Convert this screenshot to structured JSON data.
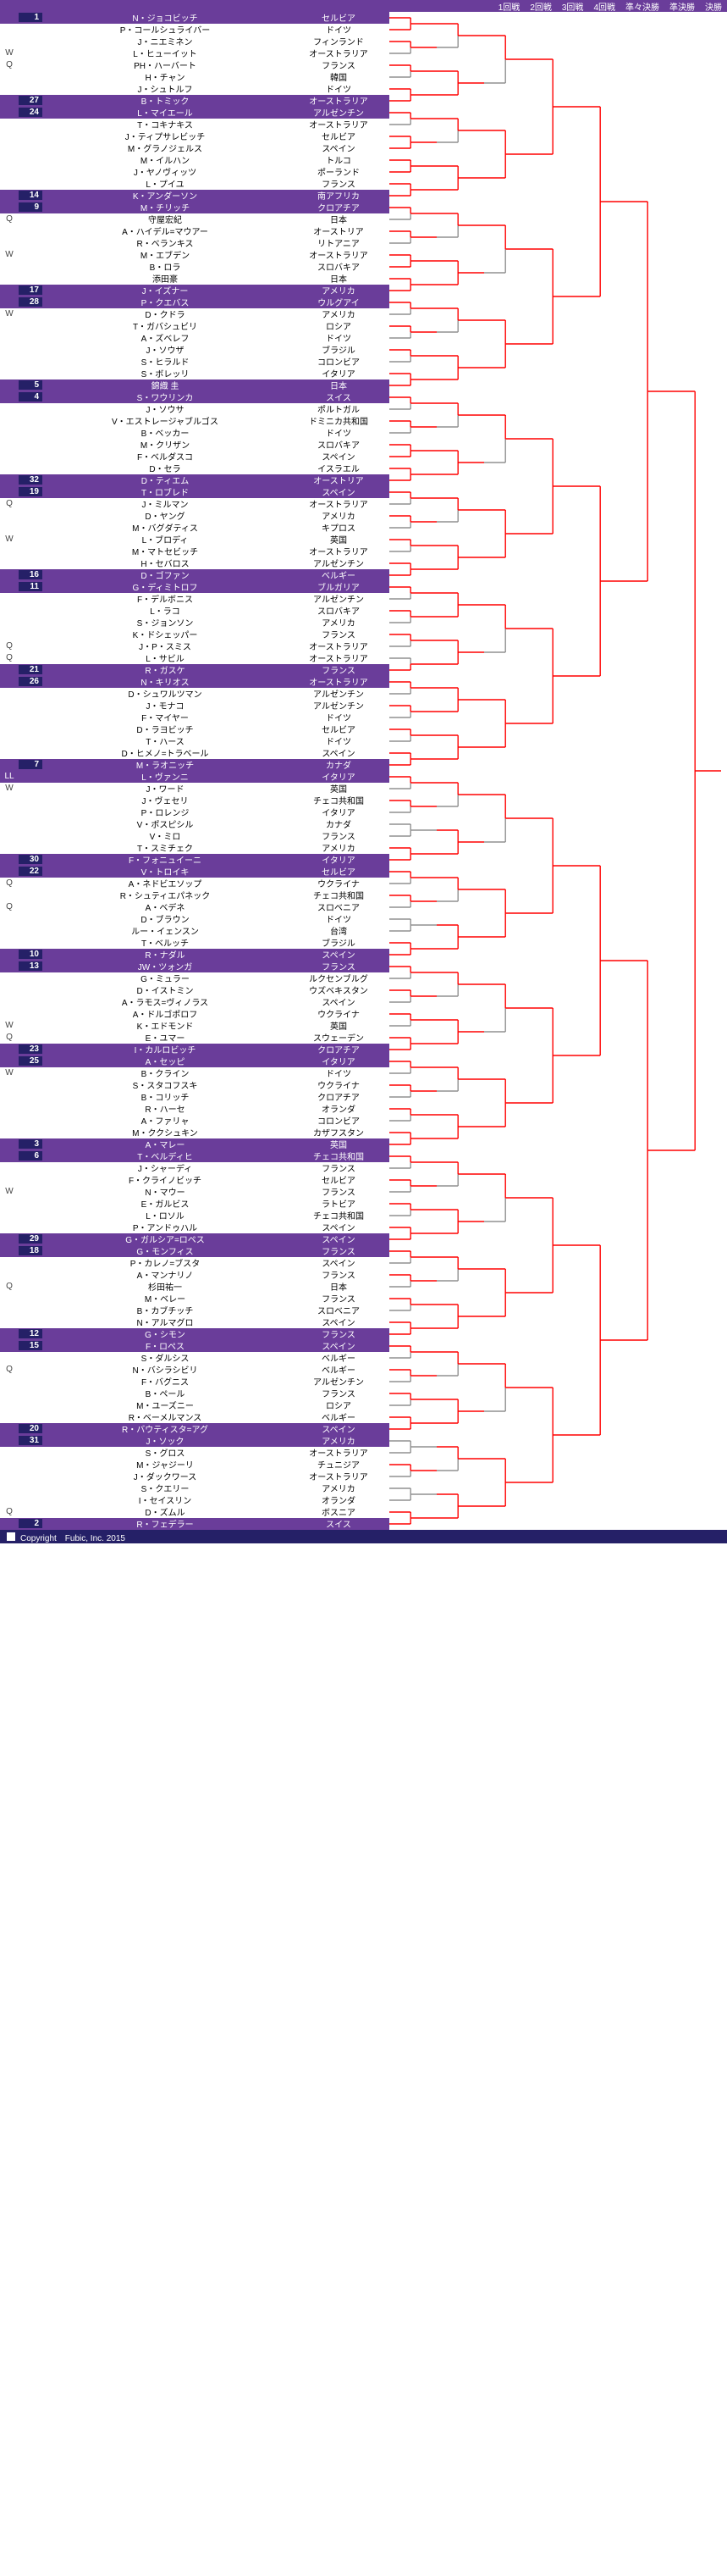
{
  "header_rounds": [
    "1回戦",
    "2回戦",
    "3回戦",
    "4回戦",
    "準々決勝",
    "準決勝",
    "決勝"
  ],
  "footer": "Copyright　Fubic, Inc. 2015",
  "colors": {
    "seed_bg": "#6a3d9a",
    "seedbox_bg": "#252067",
    "line": "#909090",
    "winline": "#ff0000"
  },
  "players": [
    {
      "q": "",
      "seed": "1",
      "name": "N・ジョコビッチ",
      "ctry": "セルビア",
      "s": true
    },
    {
      "q": "",
      "seed": "",
      "name": "P・コールシュライバー",
      "ctry": "ドイツ",
      "s": false
    },
    {
      "q": "",
      "seed": "",
      "name": "J・ニエミネン",
      "ctry": "フィンランド",
      "s": false
    },
    {
      "q": "W",
      "seed": "",
      "name": "L・ヒューイット",
      "ctry": "オーストラリア",
      "s": false
    },
    {
      "q": "Q",
      "seed": "",
      "name": "PH・ハーバート",
      "ctry": "フランス",
      "s": false
    },
    {
      "q": "",
      "seed": "",
      "name": "H・チャン",
      "ctry": "韓国",
      "s": false
    },
    {
      "q": "",
      "seed": "",
      "name": "J・シュトルフ",
      "ctry": "ドイツ",
      "s": false
    },
    {
      "q": "",
      "seed": "27",
      "name": "B・トミック",
      "ctry": "オーストラリア",
      "s": true
    },
    {
      "q": "",
      "seed": "24",
      "name": "L・マイエール",
      "ctry": "アルゼンチン",
      "s": true
    },
    {
      "q": "",
      "seed": "",
      "name": "T・コキナキス",
      "ctry": "オーストラリア",
      "s": false
    },
    {
      "q": "",
      "seed": "",
      "name": "J・ティプサレビッチ",
      "ctry": "セルビア",
      "s": false
    },
    {
      "q": "",
      "seed": "",
      "name": "M・グラノジェルス",
      "ctry": "スペイン",
      "s": false
    },
    {
      "q": "",
      "seed": "",
      "name": "M・イルハン",
      "ctry": "トルコ",
      "s": false
    },
    {
      "q": "",
      "seed": "",
      "name": "J・ヤノヴィッツ",
      "ctry": "ポーランド",
      "s": false
    },
    {
      "q": "",
      "seed": "",
      "name": "L・プイユ",
      "ctry": "フランス",
      "s": false
    },
    {
      "q": "",
      "seed": "14",
      "name": "K・アンダーソン",
      "ctry": "南アフリカ",
      "s": true
    },
    {
      "q": "",
      "seed": "9",
      "name": "M・チリッチ",
      "ctry": "クロアチア",
      "s": true
    },
    {
      "q": "Q",
      "seed": "",
      "name": "守屋宏紀",
      "ctry": "日本",
      "s": false
    },
    {
      "q": "",
      "seed": "",
      "name": "A・ハイデル=マウアー",
      "ctry": "オーストリア",
      "s": false
    },
    {
      "q": "",
      "seed": "",
      "name": "R・ベランキス",
      "ctry": "リトアニア",
      "s": false
    },
    {
      "q": "W",
      "seed": "",
      "name": "M・エブデン",
      "ctry": "オーストラリア",
      "s": false
    },
    {
      "q": "",
      "seed": "",
      "name": "B・ロラ",
      "ctry": "スロバキア",
      "s": false
    },
    {
      "q": "",
      "seed": "",
      "name": "添田豪",
      "ctry": "日本",
      "s": false
    },
    {
      "q": "",
      "seed": "17",
      "name": "J・イズナー",
      "ctry": "アメリカ",
      "s": true
    },
    {
      "q": "",
      "seed": "28",
      "name": "P・クエバス",
      "ctry": "ウルグアイ",
      "s": true
    },
    {
      "q": "W",
      "seed": "",
      "name": "D・クドラ",
      "ctry": "アメリカ",
      "s": false
    },
    {
      "q": "",
      "seed": "",
      "name": "T・ガバシュビリ",
      "ctry": "ロシア",
      "s": false
    },
    {
      "q": "",
      "seed": "",
      "name": "A・ズベレフ",
      "ctry": "ドイツ",
      "s": false
    },
    {
      "q": "",
      "seed": "",
      "name": "J・ソウザ",
      "ctry": "ブラジル",
      "s": false
    },
    {
      "q": "",
      "seed": "",
      "name": "S・ヒラルド",
      "ctry": "コロンビア",
      "s": false
    },
    {
      "q": "",
      "seed": "",
      "name": "S・ボレッリ",
      "ctry": "イタリア",
      "s": false
    },
    {
      "q": "",
      "seed": "5",
      "name": "錦織 圭",
      "ctry": "日本",
      "s": true
    },
    {
      "q": "",
      "seed": "4",
      "name": "S・ワウリンカ",
      "ctry": "スイス",
      "s": true
    },
    {
      "q": "",
      "seed": "",
      "name": "J・ソウサ",
      "ctry": "ポルトガル",
      "s": false
    },
    {
      "q": "",
      "seed": "",
      "name": "V・エストレージャブルゴス",
      "ctry": "ドミニカ共和国",
      "s": false
    },
    {
      "q": "",
      "seed": "",
      "name": "B・ベッカー",
      "ctry": "ドイツ",
      "s": false
    },
    {
      "q": "",
      "seed": "",
      "name": "M・クリザン",
      "ctry": "スロバキア",
      "s": false
    },
    {
      "q": "",
      "seed": "",
      "name": "F・ベルダスコ",
      "ctry": "スペイン",
      "s": false
    },
    {
      "q": "",
      "seed": "",
      "name": "D・セラ",
      "ctry": "イスラエル",
      "s": false
    },
    {
      "q": "",
      "seed": "32",
      "name": "D・ティエム",
      "ctry": "オーストリア",
      "s": true
    },
    {
      "q": "",
      "seed": "19",
      "name": "T・ロブレド",
      "ctry": "スペイン",
      "s": true
    },
    {
      "q": "Q",
      "seed": "",
      "name": "J・ミルマン",
      "ctry": "オーストラリア",
      "s": false
    },
    {
      "q": "",
      "seed": "",
      "name": "D・ヤング",
      "ctry": "アメリカ",
      "s": false
    },
    {
      "q": "",
      "seed": "",
      "name": "M・バグダティス",
      "ctry": "キプロス",
      "s": false
    },
    {
      "q": "W",
      "seed": "",
      "name": "L・ブロディ",
      "ctry": "英国",
      "s": false
    },
    {
      "q": "",
      "seed": "",
      "name": "M・マトセビッチ",
      "ctry": "オーストラリア",
      "s": false
    },
    {
      "q": "",
      "seed": "",
      "name": "H・セバロス",
      "ctry": "アルゼンチン",
      "s": false
    },
    {
      "q": "",
      "seed": "16",
      "name": "D・ゴファン",
      "ctry": "ベルギー",
      "s": true
    },
    {
      "q": "",
      "seed": "11",
      "name": "G・ディミトロフ",
      "ctry": "ブルガリア",
      "s": true
    },
    {
      "q": "",
      "seed": "",
      "name": "F・デルボニス",
      "ctry": "アルゼンチン",
      "s": false
    },
    {
      "q": "",
      "seed": "",
      "name": "L・ラコ",
      "ctry": "スロバキア",
      "s": false
    },
    {
      "q": "",
      "seed": "",
      "name": "S・ジョンソン",
      "ctry": "アメリカ",
      "s": false
    },
    {
      "q": "",
      "seed": "",
      "name": "K・ドシェッパー",
      "ctry": "フランス",
      "s": false
    },
    {
      "q": "Q",
      "seed": "",
      "name": "J・P・スミス",
      "ctry": "オーストラリア",
      "s": false
    },
    {
      "q": "Q",
      "seed": "",
      "name": "L・サビル",
      "ctry": "オーストラリア",
      "s": false
    },
    {
      "q": "",
      "seed": "21",
      "name": "R・ガスケ",
      "ctry": "フランス",
      "s": true
    },
    {
      "q": "",
      "seed": "26",
      "name": "N・キリオス",
      "ctry": "オーストラリア",
      "s": true
    },
    {
      "q": "",
      "seed": "",
      "name": "D・シュワルツマン",
      "ctry": "アルゼンチン",
      "s": false
    },
    {
      "q": "",
      "seed": "",
      "name": "J・モナコ",
      "ctry": "アルゼンチン",
      "s": false
    },
    {
      "q": "",
      "seed": "",
      "name": "F・マイヤー",
      "ctry": "ドイツ",
      "s": false
    },
    {
      "q": "",
      "seed": "",
      "name": "D・ラヨビッチ",
      "ctry": "セルビア",
      "s": false
    },
    {
      "q": "",
      "seed": "",
      "name": "T・ハース",
      "ctry": "ドイツ",
      "s": false
    },
    {
      "q": "",
      "seed": "",
      "name": "D・ヒメノ=トラベール",
      "ctry": "スペイン",
      "s": false
    },
    {
      "q": "",
      "seed": "7",
      "name": "M・ラオニッチ",
      "ctry": "カナダ",
      "s": true
    },
    {
      "q": "LL",
      "seed": "",
      "name": "L・ヴァンニ",
      "ctry": "イタリア",
      "s": true
    },
    {
      "q": "W",
      "seed": "",
      "name": "J・ワード",
      "ctry": "英国",
      "s": false
    },
    {
      "q": "",
      "seed": "",
      "name": "J・ヴェセリ",
      "ctry": "チェコ共和国",
      "s": false
    },
    {
      "q": "",
      "seed": "",
      "name": "P・ロレンジ",
      "ctry": "イタリア",
      "s": false
    },
    {
      "q": "",
      "seed": "",
      "name": "V・ポスピシル",
      "ctry": "カナダ",
      "s": false
    },
    {
      "q": "",
      "seed": "",
      "name": "V・ミロ",
      "ctry": "フランス",
      "s": false
    },
    {
      "q": "",
      "seed": "",
      "name": "T・スミチェク",
      "ctry": "アメリカ",
      "s": false
    },
    {
      "q": "",
      "seed": "30",
      "name": "F・フォニュイーニ",
      "ctry": "イタリア",
      "s": true
    },
    {
      "q": "",
      "seed": "22",
      "name": "V・トロイキ",
      "ctry": "セルビア",
      "s": true
    },
    {
      "q": "Q",
      "seed": "",
      "name": "A・ネドビエソップ",
      "ctry": "ウクライナ",
      "s": false
    },
    {
      "q": "",
      "seed": "",
      "name": "R・シュティエパネック",
      "ctry": "チェコ共和国",
      "s": false
    },
    {
      "q": "Q",
      "seed": "",
      "name": "A・ベデネ",
      "ctry": "スロベニア",
      "s": false
    },
    {
      "q": "",
      "seed": "",
      "name": "D・ブラウン",
      "ctry": "ドイツ",
      "s": false
    },
    {
      "q": "",
      "seed": "",
      "name": "ルー・イェンスン",
      "ctry": "台湾",
      "s": false
    },
    {
      "q": "",
      "seed": "",
      "name": "T・ベルッチ",
      "ctry": "ブラジル",
      "s": false
    },
    {
      "q": "",
      "seed": "10",
      "name": "R・ナダル",
      "ctry": "スペイン",
      "s": true
    },
    {
      "q": "",
      "seed": "13",
      "name": "JW・ツォンガ",
      "ctry": "フランス",
      "s": true
    },
    {
      "q": "",
      "seed": "",
      "name": "G・ミュラー",
      "ctry": "ルクセンブルグ",
      "s": false
    },
    {
      "q": "",
      "seed": "",
      "name": "D・イストミン",
      "ctry": "ウズベキスタン",
      "s": false
    },
    {
      "q": "",
      "seed": "",
      "name": "A・ラモス=ヴィノラス",
      "ctry": "スペイン",
      "s": false
    },
    {
      "q": "",
      "seed": "",
      "name": "A・ドルゴポロフ",
      "ctry": "ウクライナ",
      "s": false
    },
    {
      "q": "W",
      "seed": "",
      "name": "K・エドモンド",
      "ctry": "英国",
      "s": false
    },
    {
      "q": "Q",
      "seed": "",
      "name": "E・ユマー",
      "ctry": "スウェーデン",
      "s": false
    },
    {
      "q": "",
      "seed": "23",
      "name": "I・カルロビッチ",
      "ctry": "クロアチア",
      "s": true
    },
    {
      "q": "",
      "seed": "25",
      "name": "A・セッピ",
      "ctry": "イタリア",
      "s": true
    },
    {
      "q": "W",
      "seed": "",
      "name": "B・クライン",
      "ctry": "ドイツ",
      "s": false
    },
    {
      "q": "",
      "seed": "",
      "name": "S・スタコフスキ",
      "ctry": "ウクライナ",
      "s": false
    },
    {
      "q": "",
      "seed": "",
      "name": "B・コリッチ",
      "ctry": "クロアチア",
      "s": false
    },
    {
      "q": "",
      "seed": "",
      "name": "R・ハーセ",
      "ctry": "オランダ",
      "s": false
    },
    {
      "q": "",
      "seed": "",
      "name": "A・ファリャ",
      "ctry": "コロンビア",
      "s": false
    },
    {
      "q": "",
      "seed": "",
      "name": "M・ククシュキン",
      "ctry": "カザフスタン",
      "s": false
    },
    {
      "q": "",
      "seed": "3",
      "name": "A・マレー",
      "ctry": "英国",
      "s": true
    },
    {
      "q": "",
      "seed": "6",
      "name": "T・ベルディヒ",
      "ctry": "チェコ共和国",
      "s": true
    },
    {
      "q": "",
      "seed": "",
      "name": "J・シャーディ",
      "ctry": "フランス",
      "s": false
    },
    {
      "q": "",
      "seed": "",
      "name": "F・クライノビッチ",
      "ctry": "セルビア",
      "s": false
    },
    {
      "q": "W",
      "seed": "",
      "name": "N・マウー",
      "ctry": "フランス",
      "s": false
    },
    {
      "q": "",
      "seed": "",
      "name": "E・ガルビス",
      "ctry": "ラトビア",
      "s": false
    },
    {
      "q": "",
      "seed": "",
      "name": "L・ロソル",
      "ctry": "チェコ共和国",
      "s": false
    },
    {
      "q": "",
      "seed": "",
      "name": "P・アンドゥハル",
      "ctry": "スペイン",
      "s": false
    },
    {
      "q": "",
      "seed": "29",
      "name": "G・ガルシア=ロペス",
      "ctry": "スペイン",
      "s": true
    },
    {
      "q": "",
      "seed": "18",
      "name": "G・モンフィス",
      "ctry": "フランス",
      "s": true
    },
    {
      "q": "",
      "seed": "",
      "name": "P・カレノ=ブスタ",
      "ctry": "スペイン",
      "s": false
    },
    {
      "q": "",
      "seed": "",
      "name": "A・マンナリノ",
      "ctry": "フランス",
      "s": false
    },
    {
      "q": "Q",
      "seed": "",
      "name": "杉田祐一",
      "ctry": "日本",
      "s": false
    },
    {
      "q": "",
      "seed": "",
      "name": "M・ベレー",
      "ctry": "フランス",
      "s": false
    },
    {
      "q": "",
      "seed": "",
      "name": "B・カブチッチ",
      "ctry": "スロベニア",
      "s": false
    },
    {
      "q": "",
      "seed": "",
      "name": "N・アルマグロ",
      "ctry": "スペイン",
      "s": false
    },
    {
      "q": "",
      "seed": "12",
      "name": "G・シモン",
      "ctry": "フランス",
      "s": true
    },
    {
      "q": "",
      "seed": "15",
      "name": "F・ロペス",
      "ctry": "スペイン",
      "s": true
    },
    {
      "q": "",
      "seed": "",
      "name": "S・ダルシス",
      "ctry": "ベルギー",
      "s": false
    },
    {
      "q": "Q",
      "seed": "",
      "name": "N・バシラシビリ",
      "ctry": "ベルギー",
      "s": false
    },
    {
      "q": "",
      "seed": "",
      "name": "F・バグニス",
      "ctry": "アルゼンチン",
      "s": false
    },
    {
      "q": "",
      "seed": "",
      "name": "B・ペール",
      "ctry": "フランス",
      "s": false
    },
    {
      "q": "",
      "seed": "",
      "name": "M・ユーズニー",
      "ctry": "ロシア",
      "s": false
    },
    {
      "q": "",
      "seed": "",
      "name": "R・ベーメルマンス",
      "ctry": "ベルギー",
      "s": false
    },
    {
      "q": "",
      "seed": "20",
      "name": "R・バウティスタ=アグ",
      "ctry": "スペイン",
      "s": true
    },
    {
      "q": "",
      "seed": "31",
      "name": "J・ソック",
      "ctry": "アメリカ",
      "s": true
    },
    {
      "q": "",
      "seed": "",
      "name": "S・グロス",
      "ctry": "オーストラリア",
      "s": false
    },
    {
      "q": "",
      "seed": "",
      "name": "M・ジャジーリ",
      "ctry": "チュニジア",
      "s": false
    },
    {
      "q": "",
      "seed": "",
      "name": "J・ダックワース",
      "ctry": "オーストラリア",
      "s": false
    },
    {
      "q": "",
      "seed": "",
      "name": "S・クエリー",
      "ctry": "アメリカ",
      "s": false
    },
    {
      "q": "",
      "seed": "",
      "name": "I・セイスリン",
      "ctry": "オランダ",
      "s": false
    },
    {
      "q": "Q",
      "seed": "",
      "name": "D・ズムル",
      "ctry": "ボスニア",
      "s": false
    },
    {
      "q": "",
      "seed": "2",
      "name": "R・フェデラー",
      "ctry": "スイス",
      "s": true
    }
  ],
  "winners": {
    "r1": [
      0,
      1,
      0,
      0,
      0,
      0,
      0,
      1,
      0,
      0,
      0,
      1,
      0,
      1,
      0,
      1,
      0,
      0,
      0,
      0,
      0,
      1,
      0,
      1,
      0,
      0,
      0,
      0,
      0,
      0,
      0,
      1,
      0,
      0,
      0,
      0,
      0,
      1,
      0,
      1,
      0,
      0,
      0,
      0,
      0,
      0,
      0,
      1,
      0,
      0,
      0,
      0,
      0,
      0,
      1,
      1,
      0,
      0,
      0,
      0,
      0,
      0,
      0,
      1,
      0,
      0,
      0,
      0,
      1,
      0,
      0,
      1,
      0,
      0,
      0,
      0,
      1,
      0,
      0,
      1,
      0,
      0,
      0,
      0,
      0,
      0,
      0,
      1,
      0,
      0,
      0,
      0,
      0,
      0,
      0,
      1,
      0,
      0,
      0,
      0,
      0,
      0,
      0,
      1,
      0,
      0,
      0,
      0,
      0,
      0,
      0,
      1,
      0,
      0,
      0,
      0,
      0,
      0,
      0,
      1,
      1,
      0,
      0,
      0,
      1,
      0,
      0,
      1
    ],
    "r2": [
      0,
      0,
      0,
      1,
      0,
      0,
      0,
      1,
      0,
      0,
      0,
      1,
      0,
      0,
      0,
      1,
      0,
      0,
      0,
      1,
      0,
      0,
      0,
      1,
      0,
      1,
      0,
      1,
      0,
      1,
      0,
      1,
      0,
      0,
      0,
      1,
      0,
      0,
      0,
      1,
      0,
      0,
      0,
      1,
      0,
      0,
      0,
      1,
      0,
      0,
      0,
      1,
      0,
      0,
      0,
      1,
      0,
      0,
      0,
      1,
      0,
      0,
      0,
      1
    ],
    "r3": [
      0,
      0,
      0,
      1,
      0,
      0,
      0,
      1,
      0,
      0,
      0,
      1,
      0,
      0,
      0,
      1,
      0,
      0,
      0,
      1,
      0,
      0,
      0,
      1,
      0,
      0,
      0,
      1,
      0,
      0,
      0,
      1
    ],
    "r4": [
      0,
      1,
      0,
      1,
      0,
      1,
      0,
      1,
      0,
      1,
      0,
      1,
      0,
      1,
      0,
      1
    ],
    "qf": [
      0,
      1,
      0,
      1,
      0,
      1,
      0,
      1
    ],
    "sf": [
      0,
      1,
      0,
      1
    ],
    "f": [
      0,
      1
    ]
  }
}
